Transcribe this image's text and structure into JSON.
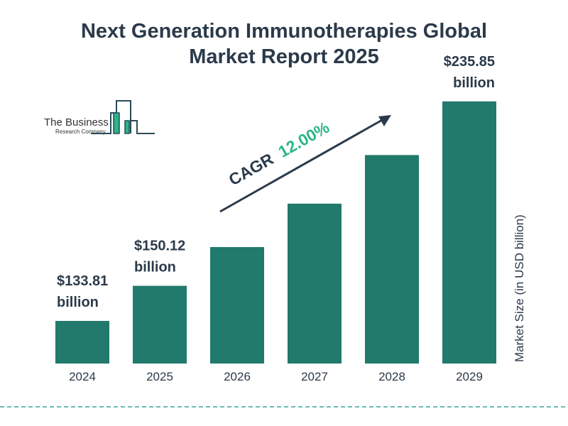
{
  "chart_data": {
    "type": "bar",
    "title_line1": "Next Generation Immunotherapies Global",
    "title_line2": "Market Report 2025",
    "categories": [
      "2024",
      "2025",
      "2026",
      "2027",
      "2028",
      "2029"
    ],
    "values": [
      133.81,
      150.12,
      168.13,
      188.31,
      210.91,
      235.85
    ],
    "data_labels": [
      {
        "index": 0,
        "line1": "$133.81",
        "line2": "billion"
      },
      {
        "index": 1,
        "line1": "$150.12",
        "line2": "billion"
      },
      {
        "index": 5,
        "line1": "$235.85",
        "line2": "billion"
      }
    ],
    "ylabel": "Market Size (in USD billion)",
    "xlabel": "",
    "grid": false,
    "cagr_label": "CAGR",
    "cagr_value": "12.00%",
    "colors": {
      "bar": "#217a6b",
      "title": "#2b3a4a",
      "cagr": "#2bb58a",
      "dash": "#3aa59a"
    }
  },
  "logo": {
    "line1": "The Business",
    "line2": "Research Company"
  }
}
